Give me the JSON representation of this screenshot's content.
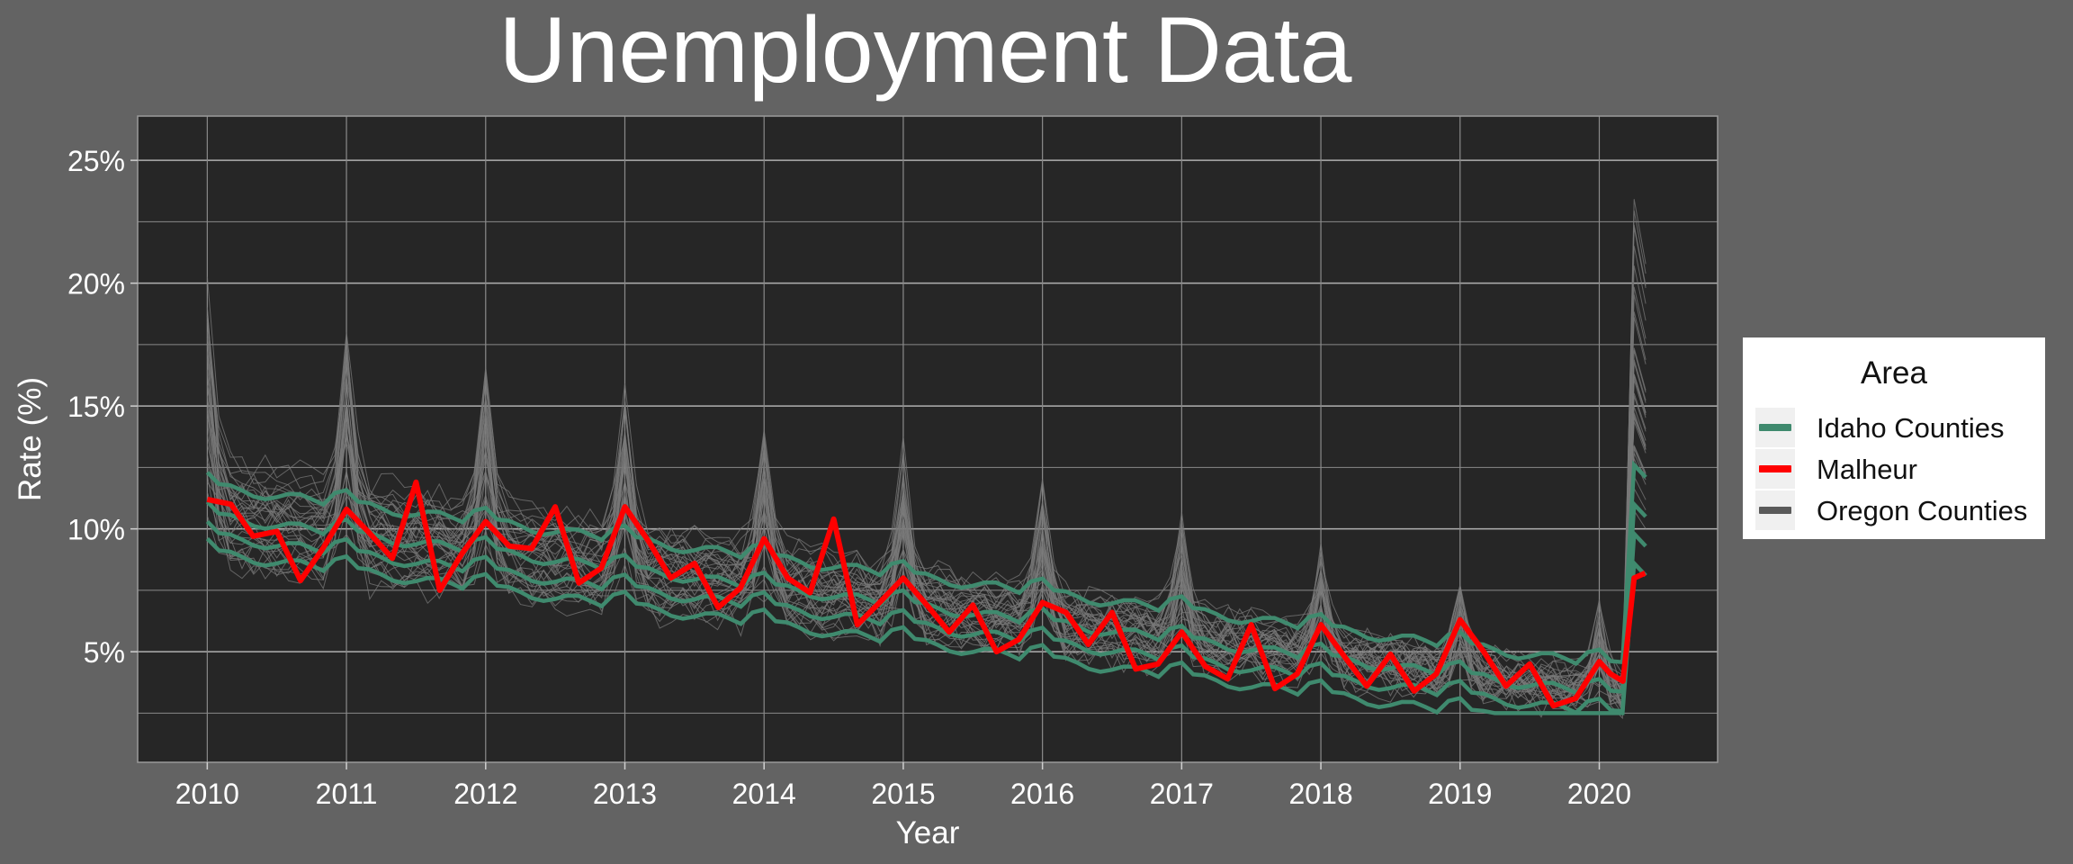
{
  "chart_data": {
    "type": "line",
    "title": "Unemployment Data",
    "xlabel": "Year",
    "ylabel": "Rate (%)",
    "xlim": [
      2009.5,
      2020.85
    ],
    "ylim": [
      0.5,
      26.8
    ],
    "xticks": [
      2010,
      2011,
      2012,
      2013,
      2014,
      2015,
      2016,
      2017,
      2018,
      2019,
      2020
    ],
    "xtick_labels": [
      "2010",
      "2011",
      "2012",
      "2013",
      "2014",
      "2015",
      "2016",
      "2017",
      "2018",
      "2019",
      "2020"
    ],
    "yticks": [
      5,
      10,
      15,
      20,
      25
    ],
    "ytick_labels": [
      "5%",
      "10%",
      "15%",
      "20%",
      "25%"
    ],
    "grid": true,
    "legend": {
      "title": "Area",
      "position": "right",
      "entries": [
        {
          "label": "Idaho Counties",
          "color": "#3f8a6e"
        },
        {
          "label": "Malheur",
          "color": "#ff0000"
        },
        {
          "label": "Oregon Counties",
          "color": "#5a5a5a"
        }
      ]
    },
    "series": [
      {
        "name": "Malheur",
        "color": "#ff0000",
        "x": [
          2010.0,
          2010.17,
          2010.33,
          2010.5,
          2010.67,
          2010.83,
          2011.0,
          2011.17,
          2011.33,
          2011.5,
          2011.67,
          2011.83,
          2012.0,
          2012.17,
          2012.33,
          2012.5,
          2012.67,
          2012.83,
          2013.0,
          2013.17,
          2013.33,
          2013.5,
          2013.67,
          2013.83,
          2014.0,
          2014.17,
          2014.33,
          2014.5,
          2014.67,
          2014.83,
          2015.0,
          2015.17,
          2015.33,
          2015.5,
          2015.67,
          2015.83,
          2016.0,
          2016.17,
          2016.33,
          2016.5,
          2016.67,
          2016.83,
          2017.0,
          2017.17,
          2017.33,
          2017.5,
          2017.67,
          2017.83,
          2018.0,
          2018.17,
          2018.33,
          2018.5,
          2018.67,
          2018.83,
          2019.0,
          2019.17,
          2019.33,
          2019.5,
          2019.67,
          2019.83,
          2020.0,
          2020.08,
          2020.17,
          2020.25,
          2020.33
        ],
        "y": [
          11.2,
          11.0,
          9.7,
          9.9,
          7.9,
          9.2,
          10.8,
          9.8,
          8.8,
          11.9,
          7.5,
          9.0,
          10.3,
          9.3,
          9.2,
          10.9,
          7.8,
          8.4,
          10.9,
          9.5,
          8.0,
          8.6,
          6.8,
          7.6,
          9.6,
          8.0,
          7.4,
          10.4,
          6.1,
          7.0,
          8.0,
          6.9,
          5.8,
          6.9,
          5.0,
          5.5,
          7.0,
          6.6,
          5.3,
          6.6,
          4.3,
          4.5,
          5.8,
          4.4,
          3.9,
          6.1,
          3.5,
          4.1,
          6.1,
          4.8,
          3.6,
          4.9,
          3.4,
          4.1,
          6.3,
          5.0,
          3.6,
          4.5,
          2.8,
          3.1,
          4.6,
          4.1,
          3.8,
          8.0,
          8.2
        ]
      }
    ]
  }
}
